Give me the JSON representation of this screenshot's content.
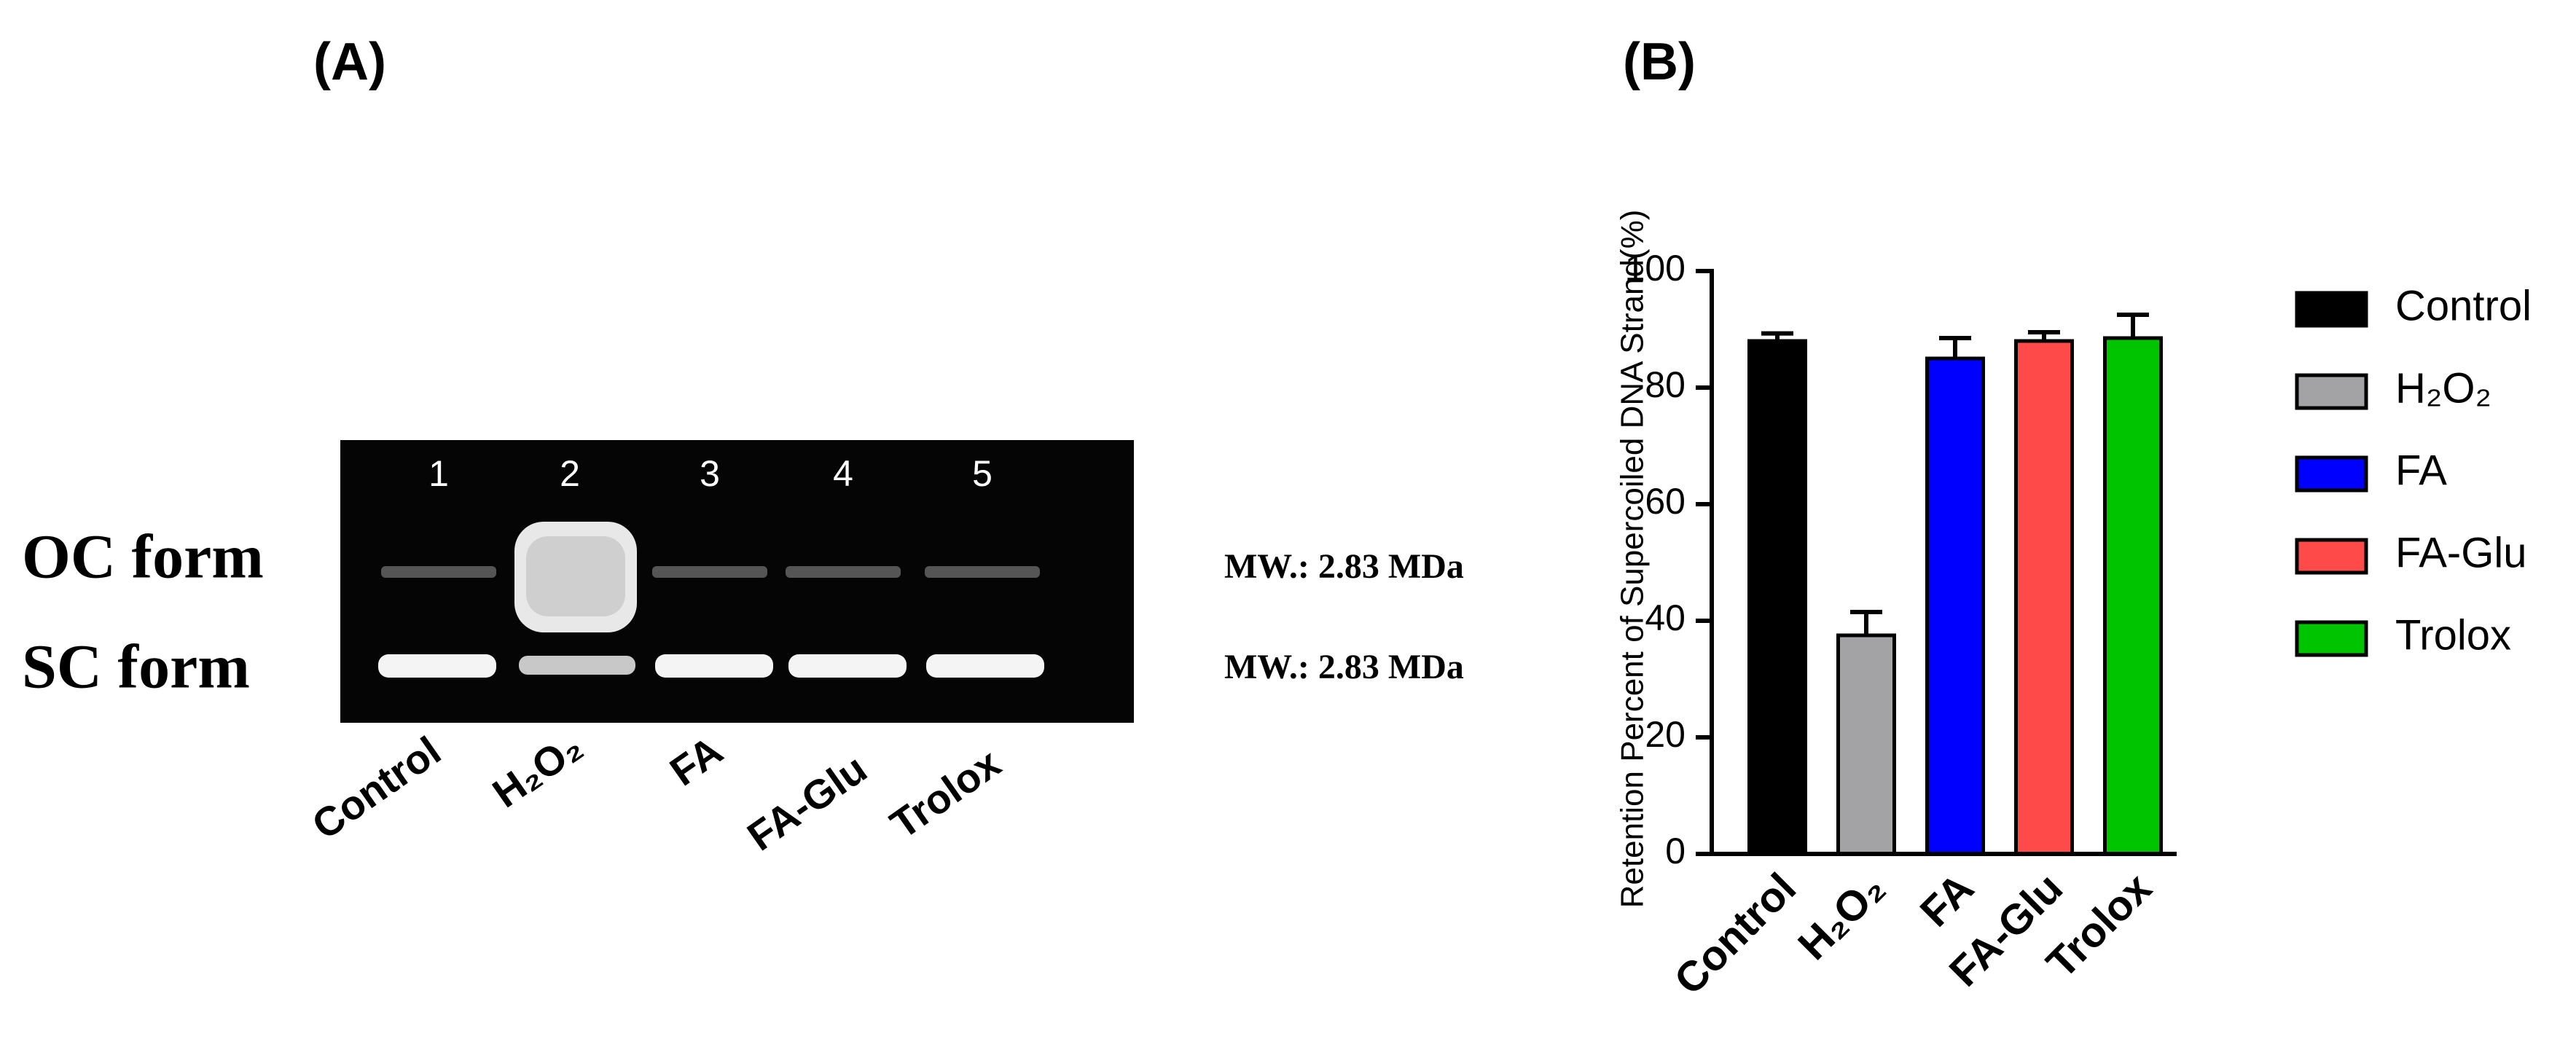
{
  "panel_a": {
    "label": "(A)",
    "lane_numbers": [
      "1",
      "2",
      "3",
      "4",
      "5"
    ],
    "lane_labels": [
      "Control",
      "H₂O₂",
      "FA",
      "FA-Glu",
      "Trolox"
    ],
    "band_labels": [
      "OC form",
      "SC form"
    ],
    "mw_labels": [
      "MW.: 2.83 MDa",
      "MW.: 2.83 MDa"
    ]
  },
  "chart_data": {
    "type": "bar",
    "panel_label": "(B)",
    "ylabel": "Retention Percent of Supercoiled DNA Strand(%)",
    "categories": [
      "Control",
      "H₂O₂",
      "FA",
      "FA-Glu",
      "Trolox"
    ],
    "values": [
      88,
      37.5,
      85,
      88,
      88.5
    ],
    "errors": [
      1.3,
      4,
      3.5,
      1.5,
      4
    ],
    "colors": [
      "#000000",
      "#a3a3a6",
      "#0000ff",
      "#ff4a4a",
      "#00c400"
    ],
    "ylim": [
      0,
      100
    ],
    "yticks": [
      0,
      20,
      40,
      60,
      80,
      100
    ],
    "legend": "right"
  }
}
